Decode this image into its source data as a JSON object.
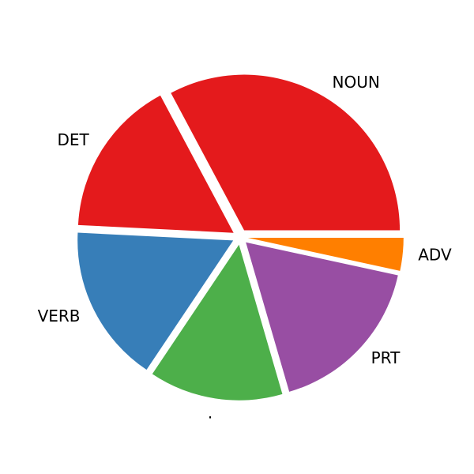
{
  "chart_data": {
    "type": "pie",
    "title": "",
    "start_angle_deg": 0,
    "direction": "counterclockwise",
    "legend": "none",
    "grid": false,
    "categories": [
      "NOUN",
      "DET",
      "VERB",
      ".",
      "PRT",
      "ADV"
    ],
    "values": [
      32.8,
      16.4,
      16.4,
      13.9,
      17.1,
      3.4
    ],
    "explode": [
      0.05,
      0.05,
      0.05,
      0.05,
      0.05,
      0.05
    ],
    "colors": [
      "#e41a1c",
      "#e41a1c",
      "#377eb8",
      "#4daf4a",
      "#984ea3",
      "#ff7f00"
    ]
  }
}
